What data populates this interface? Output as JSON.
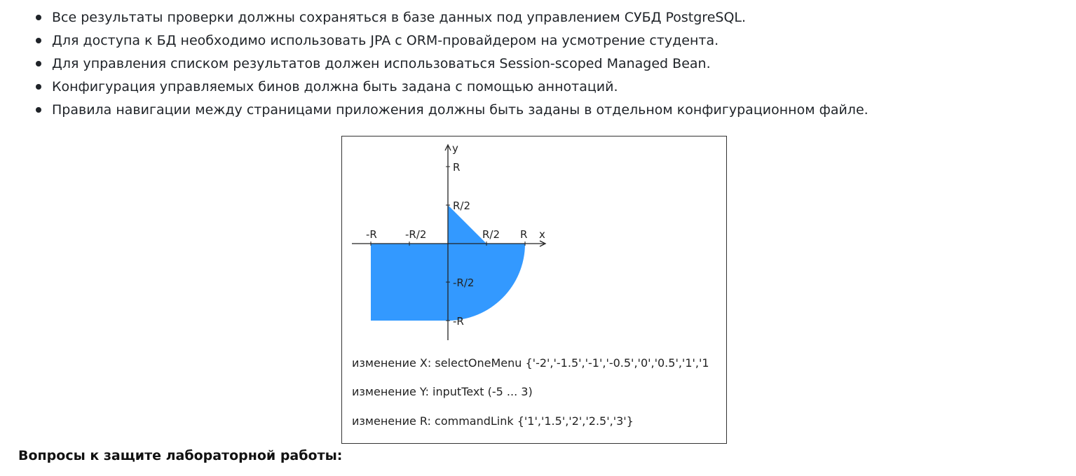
{
  "requirements": [
    "Все результаты проверки должны сохраняться в базе данных под управлением СУБД PostgreSQL.",
    "Для доступа к БД необходимо использовать JPA с ORM-провайдером на усмотрение студента.",
    "Для управления списком результатов должен использоваться Session-scoped Managed Bean.",
    "Конфигурация управляемых бинов должна быть задана с помощью аннотаций.",
    "Правила навигации между страницами приложения должны быть заданы в отдельном конфигурационном файле."
  ],
  "figure": {
    "axis_x_label": "x",
    "axis_y_label": "y",
    "ticks": {
      "x_neg_r": "-R",
      "x_neg_half": "-R/2",
      "x_pos_half": "R/2",
      "x_pos_r": "R",
      "y_pos_r": "R",
      "y_pos_half": "R/2",
      "y_neg_half": "-R/2",
      "y_neg_r": "-R"
    },
    "area_color": "#3399ff",
    "captions": {
      "x_change": "изменение X: selectOneMenu {'-2','-1.5','-1','-0.5','0','0.5','1','1",
      "y_change": "изменение Y: inputText (-5 ... 3)",
      "r_change": "изменение R: commandLink {'1','1.5','2','2.5','3'}"
    }
  },
  "questions_heading": "Вопросы к защите лабораторной работы:"
}
